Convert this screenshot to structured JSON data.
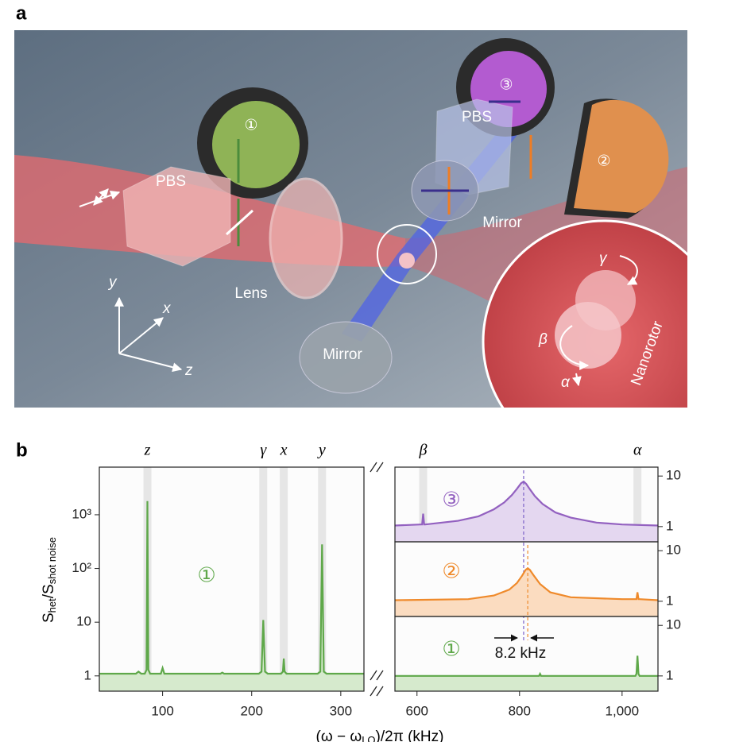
{
  "panel_a": {
    "label": "a",
    "pbs_left": "PBS",
    "pbs_right": "PBS",
    "lens": "Lens",
    "mirror_bottom": "Mirror",
    "mirror_right": "Mirror",
    "detector_1": "①",
    "detector_2": "②",
    "detector_3": "③",
    "nanorotor": "Nanorotor",
    "gamma": "γ",
    "beta": "β",
    "alpha": "α",
    "axis_x": "x",
    "axis_y": "y",
    "axis_z": "z"
  },
  "panel_b": {
    "label": "b",
    "ylabel_parts": [
      "S",
      "het",
      "/S",
      "shot noise"
    ],
    "xlabel_parts": [
      "(ω − ω",
      "LO",
      ")/2π (kHz)"
    ]
  },
  "chart_data": [
    {
      "type": "line",
      "ylog": true,
      "xlim": [
        29,
        326
      ],
      "ylim": [
        0.52,
        7700
      ],
      "xticks": [
        100,
        200,
        300
      ],
      "yticks": [
        1,
        10,
        {
          "value": 100,
          "label": "10²"
        },
        {
          "value": 1000,
          "label": "10³"
        }
      ],
      "yaxis_side": "left",
      "mode_bands": [
        {
          "label": "z",
          "x": 83
        },
        {
          "label": "γ",
          "x": 213
        },
        {
          "label": "x",
          "x": 236
        },
        {
          "label": "y",
          "x": 279
        }
      ],
      "x": [
        29,
        70,
        73,
        76,
        80,
        82,
        83,
        84,
        86,
        90,
        98,
        100,
        102,
        165,
        167,
        169,
        208,
        211,
        213,
        215,
        218,
        233,
        235,
        236,
        237,
        239,
        274,
        277,
        279,
        281,
        284,
        326
      ],
      "series": [
        {
          "name": "①",
          "color": "#5fa84a",
          "fill": "#d6eacd",
          "values": [
            1.1,
            1.1,
            1.2,
            1.1,
            1.1,
            1.3,
            1800,
            1.3,
            1.1,
            1.1,
            1.1,
            1.4,
            1.1,
            1.1,
            1.15,
            1.1,
            1.1,
            1.2,
            11,
            1.2,
            1.1,
            1.1,
            1.2,
            2.1,
            1.2,
            1.1,
            1.1,
            1.2,
            280,
            1.2,
            1.1,
            1.1
          ]
        }
      ]
    },
    {
      "type": "line",
      "ylog": true,
      "xlim": [
        557,
        1070
      ],
      "ylim": [
        0.5,
        15
      ],
      "yticks": [
        1,
        10
      ],
      "yaxis_side": "right",
      "mode_bands": [
        {
          "label": "β",
          "x": 612
        },
        {
          "label": "α",
          "x": 1030
        }
      ],
      "peak_line": {
        "x": 808,
        "color": "#7b61c9"
      },
      "x": [
        557,
        608,
        610,
        612,
        614,
        616,
        680,
        720,
        750,
        770,
        785,
        795,
        803,
        808,
        813,
        820,
        830,
        845,
        870,
        900,
        950,
        1000,
        1070
      ],
      "series": [
        {
          "name": "③",
          "color": "#9361c0",
          "fill": "#e4d7f0",
          "values": [
            1.05,
            1.1,
            1.1,
            1.8,
            1.1,
            1.1,
            1.3,
            1.6,
            2.2,
            3.0,
            4.2,
            5.6,
            7.2,
            7.8,
            7.0,
            5.5,
            4.0,
            2.8,
            1.9,
            1.5,
            1.2,
            1.1,
            1.05
          ]
        }
      ]
    },
    {
      "type": "line",
      "ylog": true,
      "xlim": [
        557,
        1070
      ],
      "ylim": [
        0.5,
        15
      ],
      "yticks": [
        1,
        10
      ],
      "yaxis_side": "right",
      "peak_line": {
        "x": 816,
        "color": "#ef8a2b"
      },
      "x": [
        557,
        700,
        750,
        780,
        795,
        805,
        812,
        816,
        820,
        828,
        840,
        860,
        900,
        1000,
        1026,
        1028,
        1030,
        1032,
        1034,
        1070
      ],
      "series": [
        {
          "name": "②",
          "color": "#ef8a2b",
          "fill": "#fbdcc0",
          "values": [
            1.05,
            1.1,
            1.3,
            1.7,
            2.3,
            3.2,
            4.2,
            4.5,
            4.2,
            3.2,
            2.2,
            1.5,
            1.2,
            1.1,
            1.1,
            1.1,
            1.5,
            1.1,
            1.1,
            1.05
          ]
        }
      ]
    },
    {
      "type": "line",
      "ylog": true,
      "xlim": [
        557,
        1070
      ],
      "ylim": [
        0.5,
        15
      ],
      "yticks": [
        1,
        10
      ],
      "yaxis_side": "right",
      "xticks": [
        600,
        800,
        {
          "value": 1000,
          "label": "1,000"
        }
      ],
      "annotation": "8.2 kHz",
      "x": [
        557,
        838,
        840,
        842,
        1026,
        1028,
        1030,
        1032,
        1034,
        1070
      ],
      "series": [
        {
          "name": "①",
          "color": "#5fa84a",
          "fill": "#d6eacd",
          "values": [
            1.0,
            1.0,
            1.1,
            1.0,
            1.0,
            1.1,
            2.5,
            1.1,
            1.0,
            1.0
          ]
        }
      ]
    }
  ]
}
